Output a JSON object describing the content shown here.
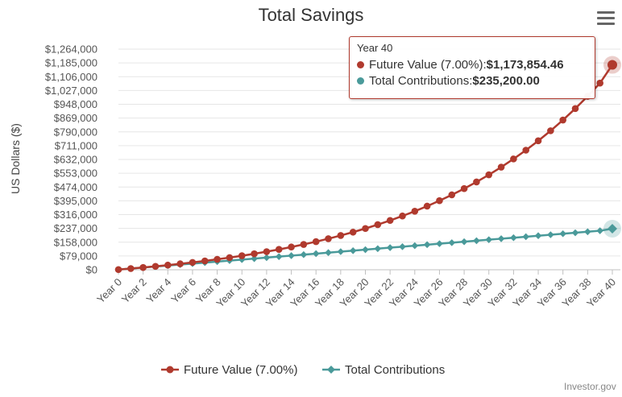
{
  "chart_data": {
    "type": "line",
    "title": "Total Savings",
    "ylabel": "US Dollars ($)",
    "xlabel": "",
    "ylim": [
      0,
      1264000
    ],
    "yticks": [
      "$0",
      "$79,000",
      "$158,000",
      "$237,000",
      "$316,000",
      "$395,000",
      "$474,000",
      "$553,000",
      "$632,000",
      "$711,000",
      "$790,000",
      "$869,000",
      "$948,000",
      "$1,027,000",
      "$1,106,000",
      "$1,185,000",
      "$1,264,000"
    ],
    "ytick_values": [
      0,
      79000,
      158000,
      237000,
      316000,
      395000,
      474000,
      553000,
      632000,
      711000,
      790000,
      869000,
      948000,
      1027000,
      1106000,
      1185000,
      1264000
    ],
    "categories": [
      "Year 0",
      "Year 1",
      "Year 2",
      "Year 3",
      "Year 4",
      "Year 5",
      "Year 6",
      "Year 7",
      "Year 8",
      "Year 9",
      "Year 10",
      "Year 11",
      "Year 12",
      "Year 13",
      "Year 14",
      "Year 15",
      "Year 16",
      "Year 17",
      "Year 18",
      "Year 19",
      "Year 20",
      "Year 21",
      "Year 22",
      "Year 23",
      "Year 24",
      "Year 25",
      "Year 26",
      "Year 27",
      "Year 28",
      "Year 29",
      "Year 30",
      "Year 31",
      "Year 32",
      "Year 33",
      "Year 34",
      "Year 35",
      "Year 36",
      "Year 37",
      "Year 38",
      "Year 39",
      "Year 40"
    ],
    "xtick_labels": [
      "Year 0",
      "Year 2",
      "Year 4",
      "Year 6",
      "Year 8",
      "Year 10",
      "Year 12",
      "Year 14",
      "Year 16",
      "Year 18",
      "Year 20",
      "Year 22",
      "Year 24",
      "Year 26",
      "Year 28",
      "Year 30",
      "Year 32",
      "Year 34",
      "Year 36",
      "Year 38",
      "Year 40"
    ],
    "series": [
      {
        "name": "Future Value (7.00%)",
        "color": "#b03a2e",
        "marker": "circle",
        "values": [
          1200,
          6900,
          13000,
          19600,
          26600,
          34100,
          42100,
          50700,
          59900,
          69800,
          80300,
          91600,
          103700,
          116600,
          130400,
          145200,
          161100,
          178000,
          196200,
          215600,
          236400,
          258700,
          282500,
          308000,
          335300,
          364500,
          395700,
          429100,
          464900,
          503200,
          544100,
          588000,
          634900,
          685100,
          738800,
          796300,
          857800,
          923600,
          994000,
          1069300,
          1173854.46
        ]
      },
      {
        "name": "Total Contributions",
        "color": "#4a9a9a",
        "marker": "diamond",
        "values": [
          1200,
          6900,
          12600,
          18300,
          24000,
          29700,
          35400,
          41100,
          46800,
          52500,
          58200,
          63900,
          69600,
          75300,
          81000,
          86700,
          92400,
          98100,
          103800,
          109500,
          115200,
          120900,
          126600,
          132300,
          138000,
          143700,
          149400,
          155100,
          160800,
          166500,
          172200,
          177900,
          183600,
          189300,
          195000,
          200700,
          206400,
          212100,
          217800,
          223500,
          235200
        ]
      }
    ],
    "legend_position": "bottom-center",
    "grid": true,
    "tooltip": {
      "header": "Year 40",
      "rows": [
        {
          "label": "Future Value (7.00%): ",
          "value": "$1,173,854.46"
        },
        {
          "label": "Total Contributions: ",
          "value": "$235,200.00"
        }
      ]
    }
  },
  "credit": "Investor.gov",
  "menu_icon": "hamburger-menu-icon"
}
